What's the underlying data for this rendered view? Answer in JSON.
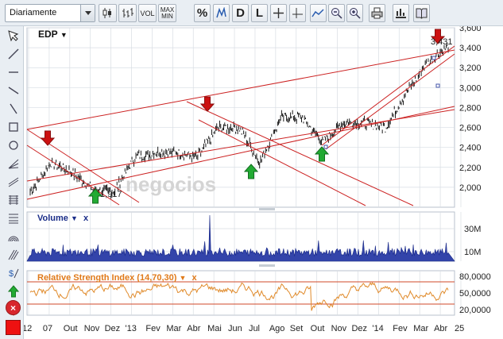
{
  "toolbar": {
    "period_value": "Diariamente",
    "vol_label": "VOL",
    "max_label": "MAX",
    "min_label": "MIN",
    "pct_label": "%",
    "d_label": "D",
    "l_label": "L",
    "icons": [
      "candlestick-icon",
      "ohlc-bars-icon",
      "crosshair-plus-icon",
      "crosshair-icon",
      "compare-icon",
      "zoom-out-icon",
      "zoom-in-icon",
      "print-icon",
      "book-icon"
    ]
  },
  "left_tools": [
    "cursor-icon",
    "line-tool-icon",
    "horizontal-line-icon",
    "vertical-line-icon",
    "ray-icon",
    "rectangle-icon",
    "circle-icon",
    "fan-icon",
    "parallel-channel-icon",
    "fibonacci-icon",
    "grid-icon",
    "arc-icon",
    "pitchfork-icon",
    "dollar-icon",
    "up-arrow-icon",
    "down-arrow-icon",
    "text-icon",
    "delete-icon",
    "color-swatch"
  ],
  "price_pane": {
    "symbol": "EDP",
    "dropdown": "▼",
    "watermark": "negocios",
    "last_high_label": "3,431",
    "low_label": "1,917"
  },
  "volume_pane": {
    "title": "Volume",
    "dropdown": "▼",
    "close": "x"
  },
  "rsi_pane": {
    "title": "Relative Strength Index (14,70,30)",
    "dropdown": "▼",
    "close": "x"
  },
  "colors": {
    "price_line": "#000000",
    "trend_lines": "#cc2222",
    "volume_fill": "#3344aa",
    "rsi_line": "#e08a2a",
    "grid": "#d8dde3",
    "up_arrow": "#22aa33",
    "down_arrow": "#cc1111"
  },
  "chart_data": [
    {
      "type": "line",
      "title": "EDP",
      "x": [
        "2012-08",
        "2012-09",
        "2012-10",
        "2012-11",
        "2012-12",
        "2013-01",
        "2013-02",
        "2013-03",
        "2013-04",
        "2013-05",
        "2013-06",
        "2013-07",
        "2013-08",
        "2013-09",
        "2013-10",
        "2013-11",
        "2013-12",
        "2014-01",
        "2014-02",
        "2014-03",
        "2014-04"
      ],
      "series": [
        {
          "values": [
            1.95,
            2.25,
            2.15,
            1.98,
            1.95,
            2.3,
            2.35,
            2.35,
            2.3,
            2.6,
            2.6,
            2.25,
            2.7,
            2.7,
            2.45,
            2.65,
            2.65,
            2.6,
            2.95,
            3.25,
            3.42
          ]
        }
      ],
      "ylim": [
        1.8,
        3.6
      ],
      "y_ticks": [
        "2,000",
        "2,200",
        "2,400",
        "2,600",
        "2,800",
        "3,000",
        "3,200",
        "3,400",
        "3,600"
      ],
      "x_ticks": [
        "12",
        "07",
        "Out",
        "Nov",
        "Dez",
        "'13",
        "Fev",
        "Mar",
        "Abr",
        "Mai",
        "Jun",
        "Jul",
        "Ago",
        "Set",
        "Out",
        "Nov",
        "Dez",
        "'14",
        "Fev",
        "Mar",
        "Abr",
        "25"
      ],
      "annotations": [
        "3,431",
        "1,917"
      ],
      "grid": true
    },
    {
      "type": "area",
      "title": "Volume",
      "y_ticks": [
        "10M",
        "30M"
      ],
      "grid": true
    },
    {
      "type": "line",
      "title": "Relative Strength Index (14,70,30)",
      "y_ticks": [
        "20,0000",
        "50,0000",
        "80,0000"
      ],
      "reference_lines": [
        30,
        70
      ],
      "ylim": [
        10,
        90
      ],
      "grid": true
    }
  ]
}
